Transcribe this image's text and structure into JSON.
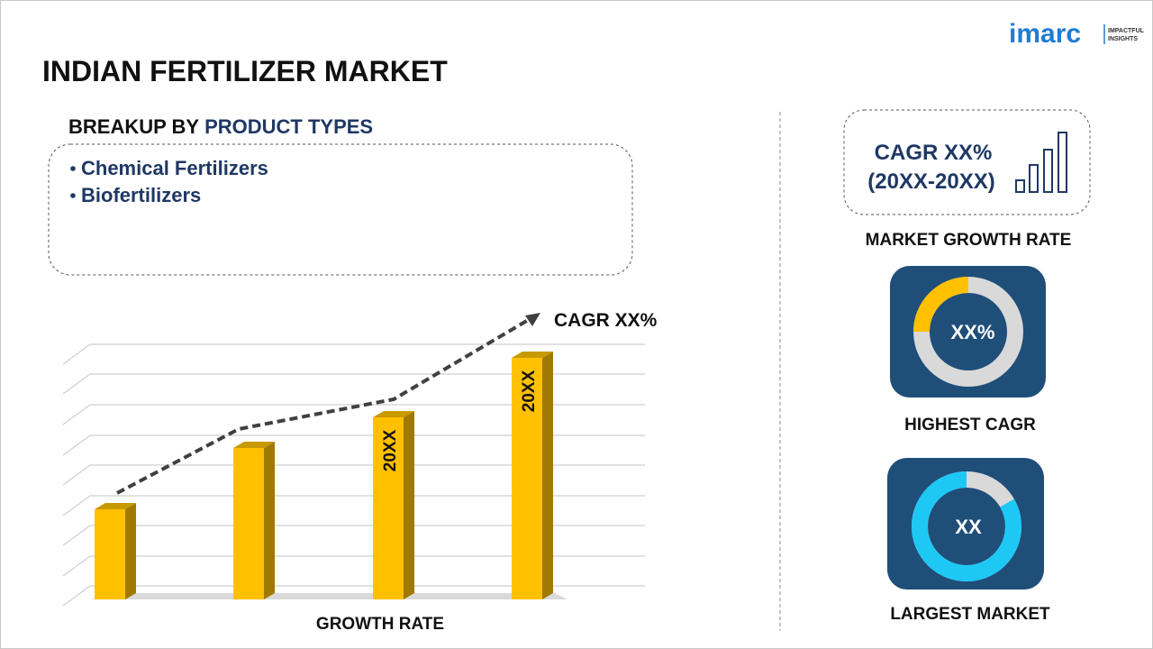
{
  "header": {
    "title": "INDIAN FERTILIZER MARKET",
    "logo": {
      "name": "imarc",
      "tagline": [
        "IMPACTFUL",
        "INSIGHTS"
      ]
    }
  },
  "breakup": {
    "label": "BREAKUP BY",
    "highlight": "PRODUCT TYPES",
    "items": [
      "Chemical Fertilizers",
      "Biofertilizers"
    ]
  },
  "growth_chart": {
    "trend_label": "CAGR XX%",
    "bar_labels": [
      "20XX",
      "20XX"
    ],
    "caption": "GROWTH RATE"
  },
  "market_growth": {
    "cagr": "CAGR XX%",
    "period": "(20XX-20XX)",
    "caption": "MARKET GROWTH RATE"
  },
  "highest_cagr": {
    "value": "XX%",
    "caption": "HIGHEST CAGR"
  },
  "largest_market": {
    "value": "XX",
    "caption": "LARGEST MARKET"
  }
}
